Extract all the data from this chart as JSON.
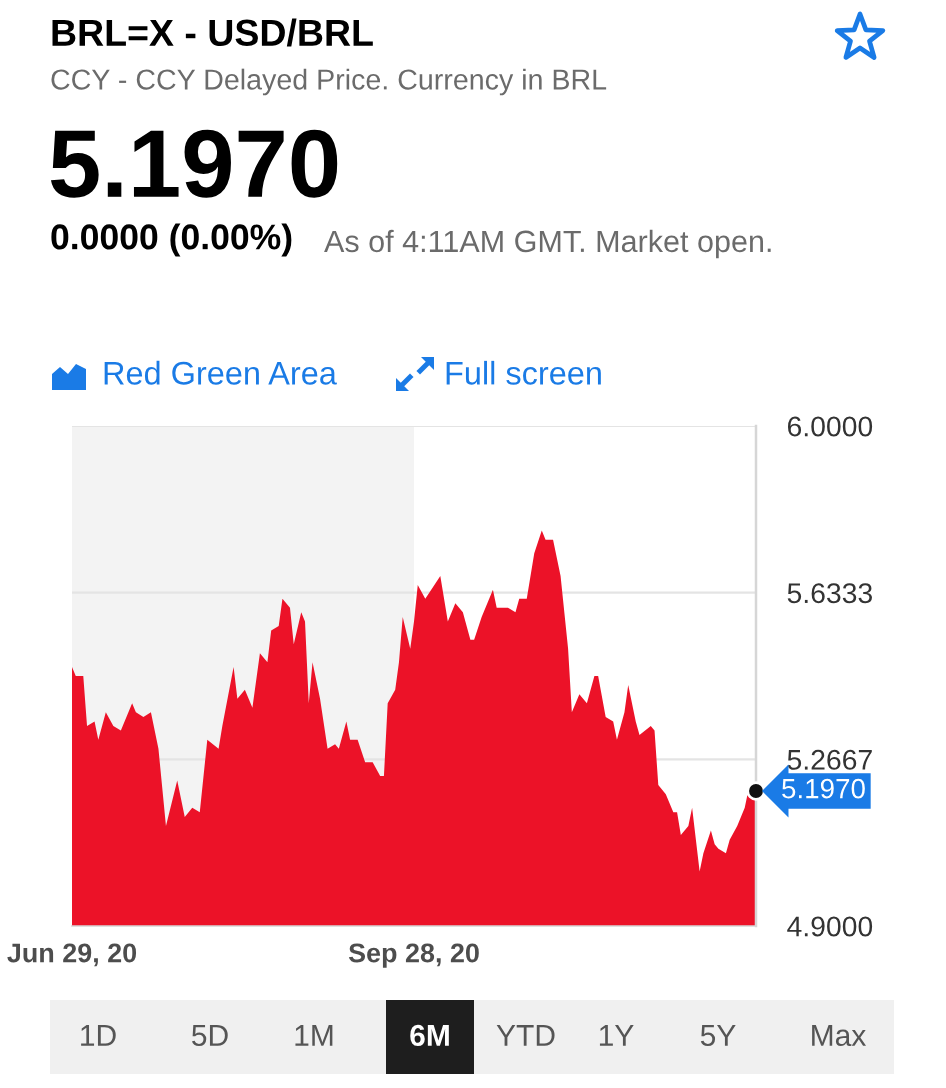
{
  "chart_data": {
    "type": "area",
    "title": "BRL=X - USD/BRL",
    "subtitle": "CCY - CCY Delayed Price. Currency in BRL",
    "x": [
      "2020-06-29",
      "2020-06-30",
      "2020-07-02",
      "2020-07-03",
      "2020-07-05",
      "2020-07-06",
      "2020-07-08",
      "2020-07-10",
      "2020-07-12",
      "2020-07-15",
      "2020-07-16",
      "2020-07-18",
      "2020-07-20",
      "2020-07-22",
      "2020-07-24",
      "2020-07-27",
      "2020-07-29",
      "2020-07-31",
      "2020-08-02",
      "2020-08-04",
      "2020-08-07",
      "2020-08-08",
      "2020-08-11",
      "2020-08-12",
      "2020-08-14",
      "2020-08-16",
      "2020-08-18",
      "2020-08-20",
      "2020-08-21",
      "2020-08-23",
      "2020-08-24",
      "2020-08-26",
      "2020-08-27",
      "2020-08-29",
      "2020-08-30",
      "2020-08-31",
      "2020-09-01",
      "2020-09-03",
      "2020-09-05",
      "2020-09-07",
      "2020-09-08",
      "2020-09-10",
      "2020-09-11",
      "2020-09-13",
      "2020-09-15",
      "2020-09-17",
      "2020-09-19",
      "2020-09-20",
      "2020-09-21",
      "2020-09-23",
      "2020-09-24",
      "2020-09-25",
      "2020-09-27",
      "2020-09-28",
      "2020-09-29",
      "2020-10-01",
      "2020-10-05",
      "2020-10-07",
      "2020-10-09",
      "2020-10-11",
      "2020-10-13",
      "2020-10-14",
      "2020-10-16",
      "2020-10-19",
      "2020-10-20",
      "2020-10-23",
      "2020-10-25",
      "2020-10-26",
      "2020-10-28",
      "2020-10-30",
      "2020-11-01",
      "2020-11-02",
      "2020-11-04",
      "2020-11-06",
      "2020-11-08",
      "2020-11-09",
      "2020-11-11",
      "2020-11-13",
      "2020-11-15",
      "2020-11-16",
      "2020-11-18",
      "2020-11-20",
      "2020-11-21",
      "2020-11-23",
      "2020-11-24",
      "2020-11-26",
      "2020-11-27",
      "2020-11-30",
      "2020-12-01",
      "2020-12-02",
      "2020-12-04",
      "2020-12-06",
      "2020-12-07",
      "2020-12-08",
      "2020-12-10",
      "2020-12-11",
      "2020-12-13",
      "2020-12-14",
      "2020-12-16",
      "2020-12-17",
      "2020-12-18",
      "2020-12-20",
      "2020-12-21",
      "2020-12-23",
      "2020-12-25",
      "2020-12-26",
      "2020-12-27",
      "2020-12-28"
    ],
    "series": [
      {
        "color": "#ec1228",
        "values": [
          5.47,
          5.45,
          5.45,
          5.34,
          5.35,
          5.31,
          5.37,
          5.34,
          5.33,
          5.39,
          5.37,
          5.36,
          5.37,
          5.29,
          5.12,
          5.22,
          5.14,
          5.16,
          5.15,
          5.31,
          5.29,
          5.34,
          5.47,
          5.4,
          5.42,
          5.38,
          5.5,
          5.48,
          5.55,
          5.56,
          5.62,
          5.6,
          5.52,
          5.59,
          5.57,
          5.39,
          5.48,
          5.4,
          5.29,
          5.3,
          5.29,
          5.35,
          5.31,
          5.31,
          5.26,
          5.26,
          5.23,
          5.23,
          5.39,
          5.42,
          5.48,
          5.58,
          5.51,
          5.57,
          5.65,
          5.62,
          5.67,
          5.57,
          5.61,
          5.59,
          5.53,
          5.53,
          5.58,
          5.64,
          5.6,
          5.6,
          5.59,
          5.62,
          5.62,
          5.72,
          5.77,
          5.75,
          5.75,
          5.67,
          5.51,
          5.37,
          5.41,
          5.39,
          5.45,
          5.45,
          5.36,
          5.35,
          5.31,
          5.37,
          5.43,
          5.35,
          5.32,
          5.34,
          5.33,
          5.21,
          5.19,
          5.15,
          5.15,
          5.1,
          5.12,
          5.16,
          5.02,
          5.06,
          5.11,
          5.08,
          5.07,
          5.06,
          5.09,
          5.12,
          5.16,
          5.2,
          5.19,
          5.197
        ]
      }
    ],
    "xlim": [
      "2020-06-29",
      "2020-12-28"
    ],
    "xticks": [
      {
        "value": "2020-06-29",
        "label": "Jun 29, 20"
      },
      {
        "value": "2020-09-28",
        "label": "Sep 28, 20"
      }
    ],
    "ylim": [
      4.9,
      6.0
    ],
    "yticks": [
      {
        "value": 4.9,
        "label": "4.9000"
      },
      {
        "value": 5.2667,
        "label": "5.2667"
      },
      {
        "value": 5.6333,
        "label": "5.6333"
      },
      {
        "value": 6.0,
        "label": "6.0000"
      }
    ],
    "grid": "y",
    "bands": [
      {
        "axis": "x",
        "from": "2020-06-29",
        "to": "2020-09-28",
        "color": "#f3f3f3"
      }
    ],
    "annotations": [
      "5.1970",
      "0.0000 (0.00%)",
      "As of 4:11AM GMT. Market open.",
      "Red Green Area",
      "Full screen",
      "1D",
      "5D",
      "1M",
      "6M",
      "YTD",
      "1Y",
      "5Y",
      "Max",
      {
        "text": "5.1970",
        "x": "2020-12-28",
        "y": 5.197
      }
    ]
  }
}
